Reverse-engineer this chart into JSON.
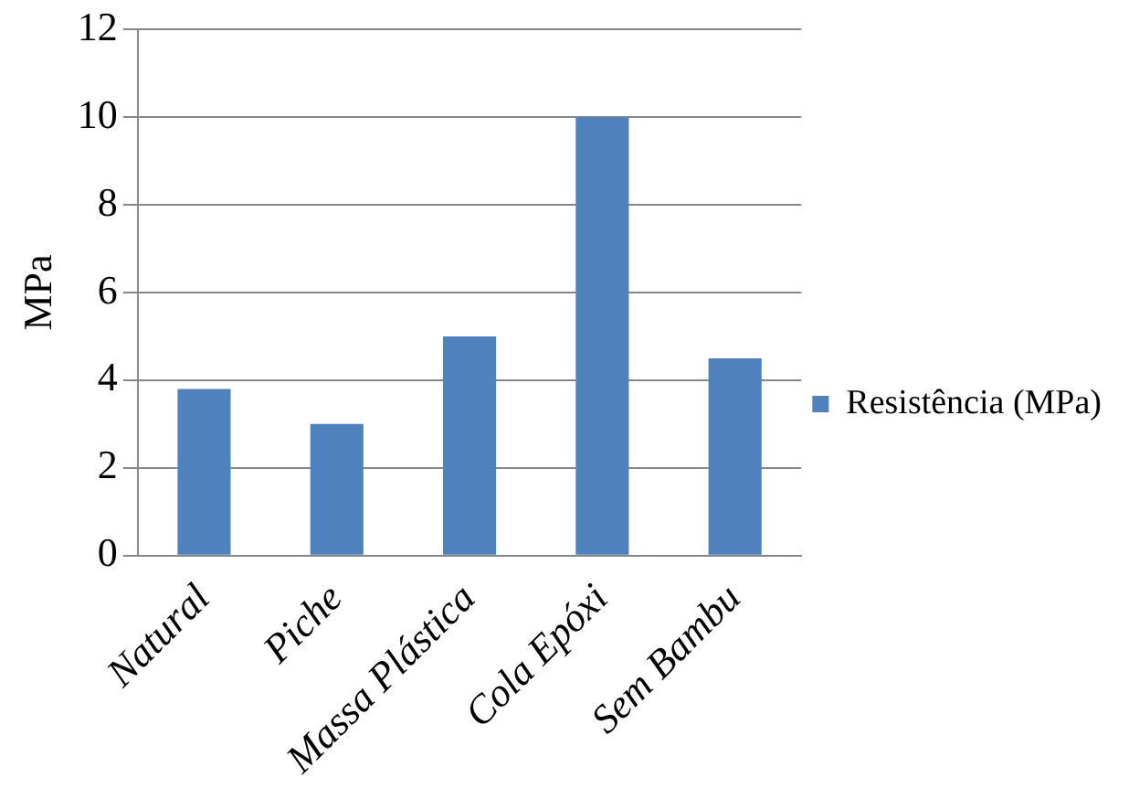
{
  "chart_data": {
    "type": "bar",
    "ylabel": "MPa",
    "categories": [
      "Natural",
      "Piche",
      "Massa Plástica",
      "Cola Epóxi",
      "Sem Bambu"
    ],
    "series": [
      {
        "name": "Resistência (MPa)",
        "color": "#4f81bd",
        "values": [
          3.8,
          3.0,
          5.0,
          10.0,
          4.5
        ]
      }
    ],
    "ylim": [
      0,
      12
    ],
    "yticks": [
      0,
      2,
      4,
      6,
      8,
      10,
      12
    ],
    "grid": "y",
    "legend": "right"
  }
}
